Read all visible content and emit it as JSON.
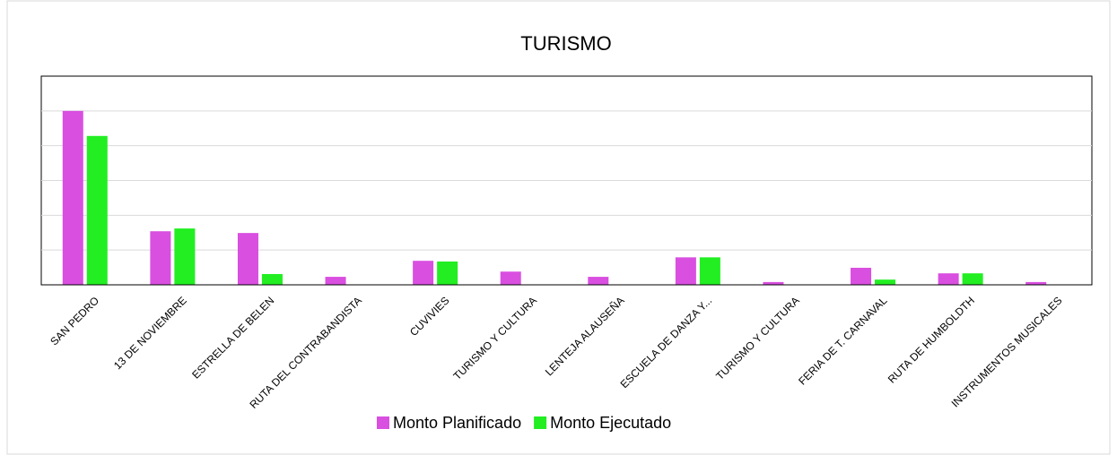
{
  "chart_data": {
    "type": "bar",
    "title": "TURISMO",
    "categories": [
      "SAN PEDRO",
      "13 DE NOVIEMBRE",
      "ESTRELLA DE BELEN",
      "RUTA DEL CONTRABANDISTA",
      "CUVIVIES",
      "TURISMO Y CULTURA",
      "LENTEJA ALAUSEÑA",
      "ESCUELA DE DANZA Y...",
      "TURISMO Y CULTURA",
      "FERIA DE T. CARNAVAL",
      "RUTA DE HUMBOLDTH",
      "INSTRUMENTOS MUSICALES"
    ],
    "series": [
      {
        "name": "Monto Planificado",
        "color": "#d94fe0",
        "values": [
          5.0,
          1.54,
          1.49,
          0.23,
          0.69,
          0.38,
          0.23,
          0.79,
          0.08,
          0.49,
          0.33,
          0.08
        ]
      },
      {
        "name": "Monto Ejecutado",
        "color": "#22ee22",
        "values": [
          4.28,
          1.62,
          0.31,
          0,
          0.67,
          0,
          0,
          0.79,
          0,
          0.15,
          0.33,
          0
        ]
      }
    ],
    "ylim": [
      0,
      6
    ],
    "yticks": [
      1,
      2,
      3,
      4,
      5
    ],
    "grid": true,
    "legend": "bottom"
  }
}
